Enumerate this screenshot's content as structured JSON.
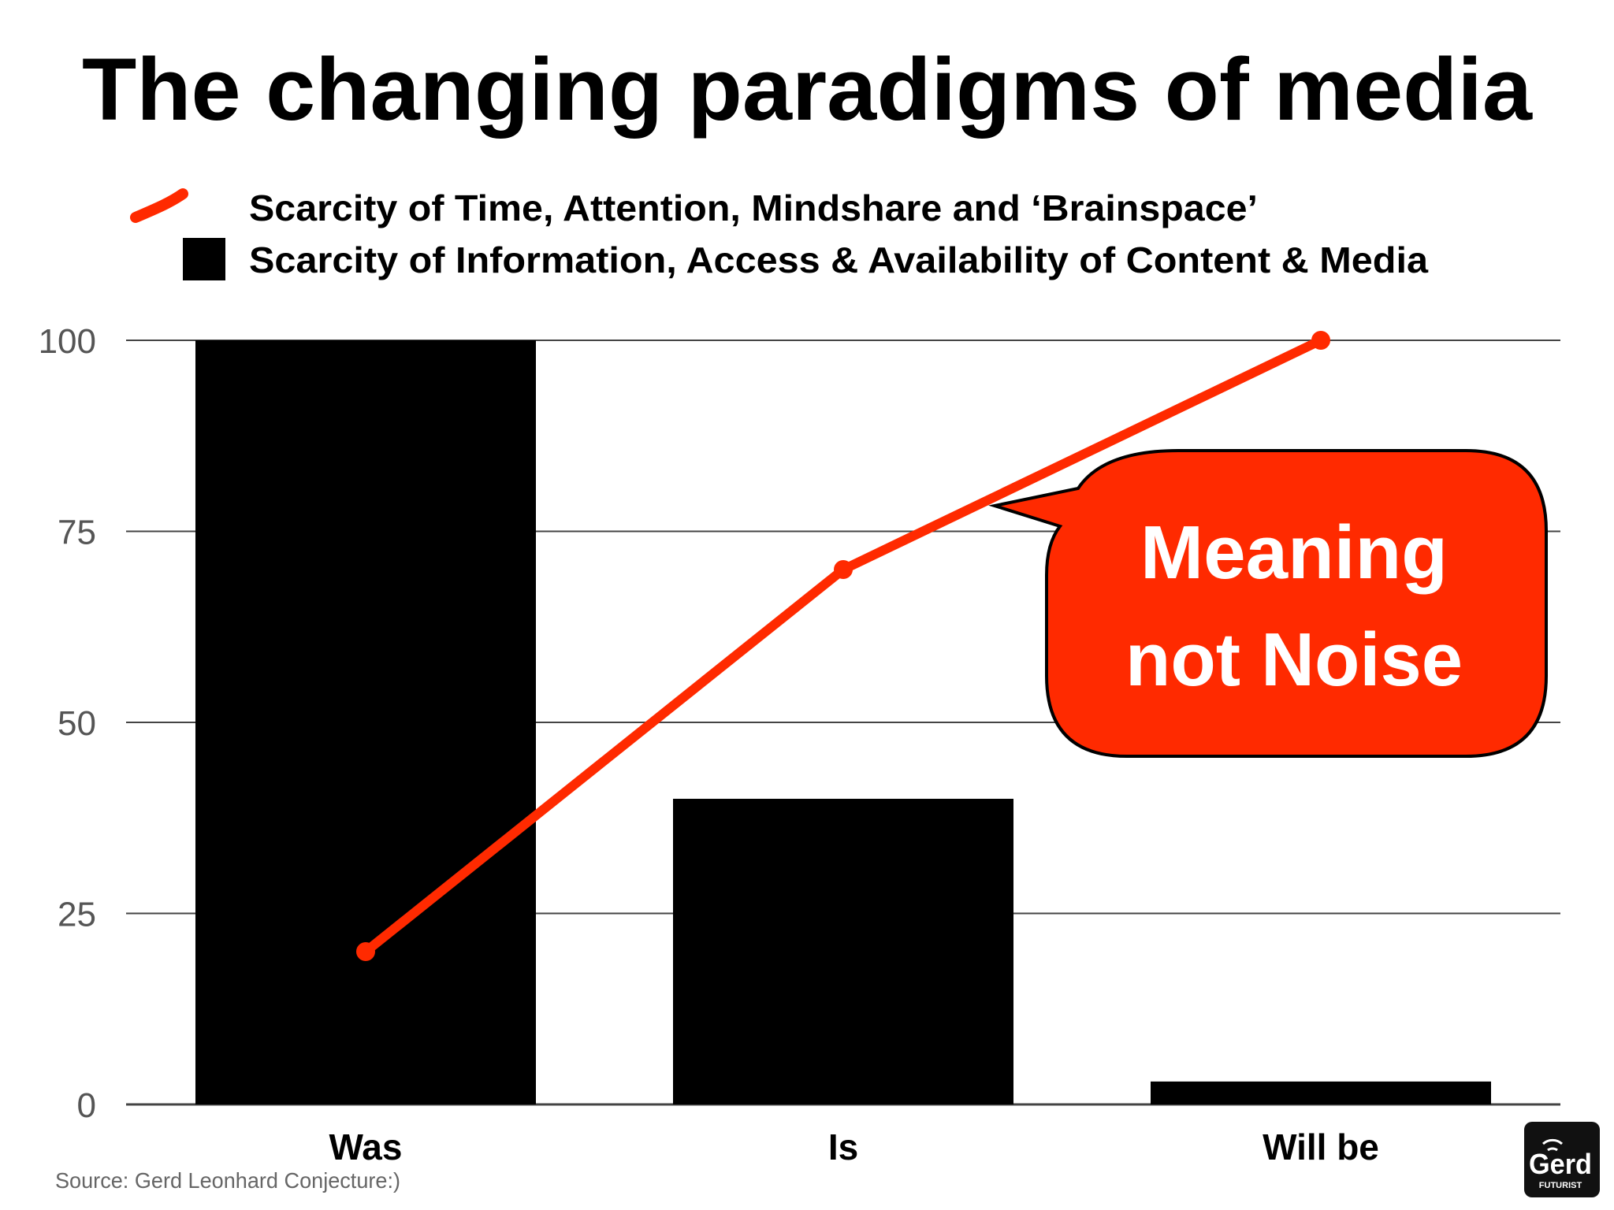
{
  "title": "The changing paradigms of media",
  "legend": [
    {
      "label": "Scarcity of Time, Attention, Mindshare and ‘Brainspace’",
      "icon": "red-line-icon"
    },
    {
      "label": "Scarcity of Information, Access & Availability of Content & Media",
      "icon": "black-square-icon"
    }
  ],
  "callout": {
    "line1": "Meaning",
    "line2": "not Noise"
  },
  "source": "Source: Gerd Leonhard Conjecture:)",
  "logo": {
    "name": "Gerd",
    "tagline": "FUTURIST"
  },
  "colors": {
    "line": "#ff2a00",
    "bar": "#000000",
    "callout_fill": "#ff2a00",
    "callout_stroke": "#000000",
    "grid": "#444444",
    "logo_bg": "#111111"
  },
  "chart_data": {
    "type": "bar",
    "categories": [
      "Was",
      "Is",
      "Will be"
    ],
    "series": [
      {
        "name": "Scarcity of Information, Access & Availability of Content & Media",
        "type": "bar",
        "values": [
          100,
          40,
          3
        ]
      },
      {
        "name": "Scarcity of Time, Attention, Mindshare and ‘Brainspace’",
        "type": "line",
        "values": [
          20,
          70,
          100
        ]
      }
    ],
    "title": "The changing paradigms of media",
    "xlabel": "",
    "ylabel": "",
    "ylim": [
      0,
      100
    ],
    "yticks": [
      0,
      25,
      50,
      75,
      100
    ],
    "grid": true,
    "legend_position": "top"
  }
}
